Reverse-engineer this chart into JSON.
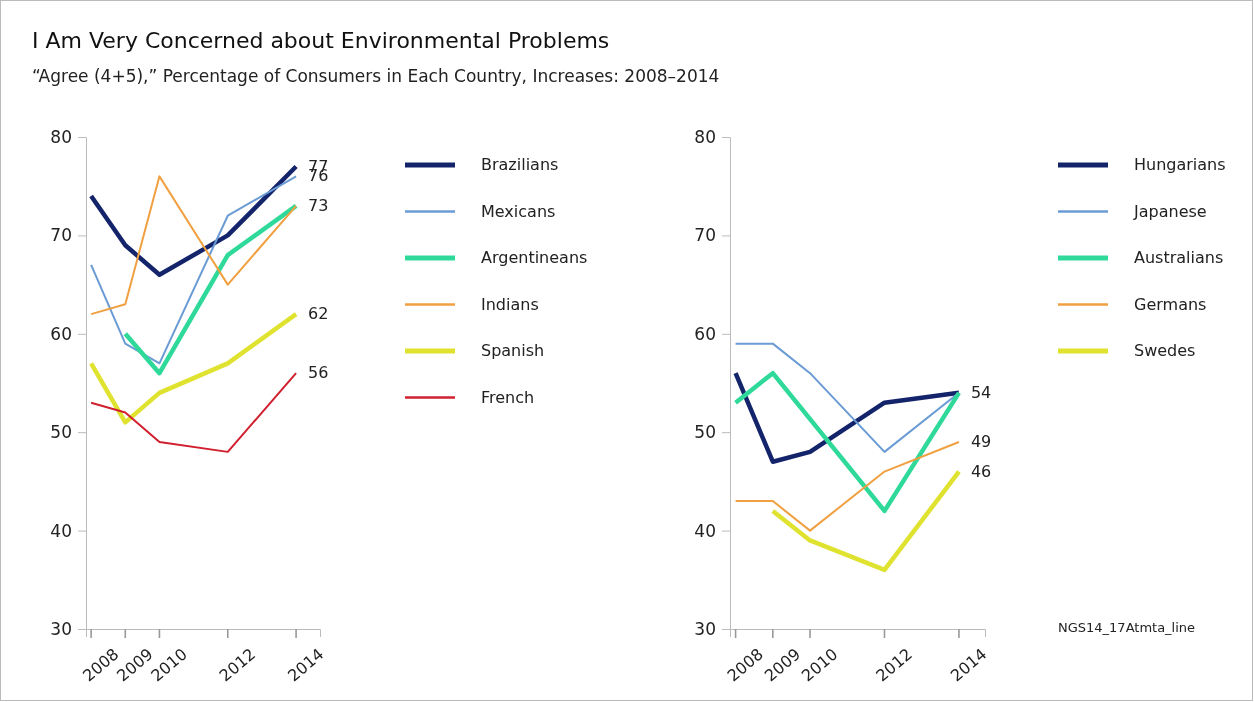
{
  "chart_data": [
    {
      "type": "line",
      "title": "I Am Very Concerned about Environmental Problems",
      "subtitle": "“Agree (4+5),” Percentage of Consumers in Each Country, Increases: 2008–2014",
      "xlim": [
        2007.85,
        2014.7
      ],
      "xticks": [
        2008,
        2009,
        2010,
        2012,
        2014
      ],
      "ylim": [
        30,
        80
      ],
      "yticks": [
        30,
        40,
        50,
        60,
        70,
        80
      ],
      "grid": false,
      "legend": "right",
      "series": [
        {
          "name": "Brazilians",
          "color": "#14246b",
          "x": [
            2008,
            2009,
            2010,
            2012,
            2014
          ],
          "values": [
            74,
            69,
            66,
            70,
            77
          ],
          "value_labels": [
            null,
            null,
            null,
            null,
            "77"
          ]
        },
        {
          "name": "Mexicans",
          "color": "#6a9bd4",
          "x": [
            2008,
            2009,
            2010,
            2012,
            2014
          ],
          "values": [
            67,
            59,
            57,
            72,
            76
          ],
          "value_labels": [
            null,
            null,
            null,
            null,
            "76"
          ]
        },
        {
          "name": "Argentineans",
          "color": "#2fd99a",
          "x": [
            2009,
            2010,
            2012,
            2014
          ],
          "values": [
            60,
            56,
            68,
            73
          ],
          "value_labels": [
            null,
            null,
            null,
            "73"
          ]
        },
        {
          "name": "Indians",
          "color": "#f0a040",
          "x": [
            2008,
            2009,
            2010,
            2012,
            2014
          ],
          "values": [
            62,
            63,
            76,
            65,
            73
          ]
        },
        {
          "name": "Spanish",
          "color": "#dfe22e",
          "x": [
            2008,
            2009,
            2010,
            2012,
            2014
          ],
          "values": [
            57,
            51,
            54,
            57,
            62
          ],
          "value_labels": [
            null,
            null,
            null,
            null,
            "62"
          ]
        },
        {
          "name": "French",
          "color": "#d0202f",
          "x": [
            2008,
            2009,
            2010,
            2012,
            2014
          ],
          "values": [
            53,
            52,
            49,
            48,
            56
          ],
          "value_labels": [
            null,
            null,
            null,
            null,
            "56"
          ]
        }
      ]
    },
    {
      "type": "line",
      "annotations": [
        "NGS14_17Atmta_line"
      ],
      "xlim": [
        2007.85,
        2014.7
      ],
      "xticks": [
        2008,
        2009,
        2010,
        2012,
        2014
      ],
      "ylim": [
        30,
        80
      ],
      "yticks": [
        30,
        40,
        50,
        60,
        70,
        80
      ],
      "grid": false,
      "legend": "right",
      "series": [
        {
          "name": "Hungarians",
          "color": "#14246b",
          "x": [
            2008,
            2009,
            2010,
            2012,
            2014
          ],
          "values": [
            56,
            47,
            48,
            53,
            54
          ],
          "value_labels": [
            null,
            null,
            null,
            null,
            "54"
          ]
        },
        {
          "name": "Japanese",
          "color": "#6a9bd4",
          "x": [
            2008,
            2009,
            2010,
            2012,
            2014
          ],
          "values": [
            59,
            59,
            56,
            48,
            54
          ]
        },
        {
          "name": "Australians",
          "color": "#2fd99a",
          "x": [
            2008,
            2009,
            2012,
            2014
          ],
          "values": [
            53,
            56,
            42,
            54
          ]
        },
        {
          "name": "Germans",
          "color": "#f0a040",
          "x": [
            2008,
            2009,
            2010,
            2012,
            2014
          ],
          "values": [
            43,
            43,
            40,
            46,
            49
          ],
          "value_labels": [
            null,
            null,
            null,
            null,
            "49"
          ]
        },
        {
          "name": "Swedes",
          "color": "#dfe22e",
          "x": [
            2009,
            2010,
            2012,
            2014
          ],
          "values": [
            42,
            39,
            36,
            46
          ],
          "value_labels": [
            null,
            null,
            null,
            "46"
          ]
        }
      ]
    }
  ]
}
